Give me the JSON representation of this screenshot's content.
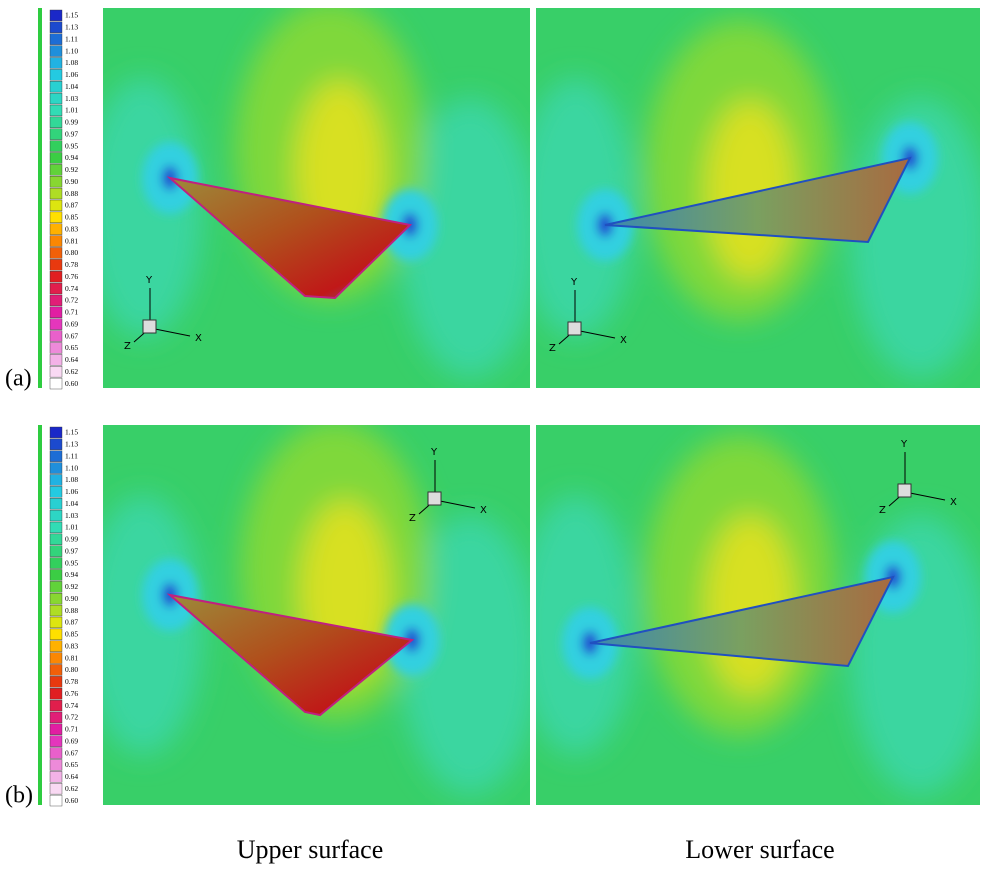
{
  "rows": [
    {
      "label": "(a)",
      "legend": [
        "1.15",
        "1.13",
        "1.11",
        "1.10",
        "1.08",
        "1.06",
        "1.04",
        "1.03",
        "1.01",
        "0.99",
        "0.97",
        "0.95",
        "0.94",
        "0.92",
        "0.90",
        "0.88",
        "0.87",
        "0.85",
        "0.83",
        "0.81",
        "0.80",
        "0.78",
        "0.76",
        "0.74",
        "0.72",
        "0.71",
        "0.69",
        "0.67",
        "0.65",
        "0.64",
        "0.62",
        "0.60"
      ],
      "panels": [
        {
          "axes": [
            "X",
            "Y",
            "Z"
          ]
        },
        {
          "axes": [
            "X",
            "Y",
            "Z"
          ]
        }
      ]
    },
    {
      "label": "(b)",
      "legend": [
        "1.15",
        "1.13",
        "1.11",
        "1.10",
        "1.08",
        "1.06",
        "1.04",
        "1.03",
        "1.01",
        "0.99",
        "0.97",
        "0.95",
        "0.94",
        "0.92",
        "0.90",
        "0.88",
        "0.87",
        "0.85",
        "0.83",
        "0.81",
        "0.80",
        "0.78",
        "0.76",
        "0.74",
        "0.72",
        "0.71",
        "0.69",
        "0.67",
        "0.65",
        "0.64",
        "0.62",
        "0.60"
      ],
      "panels": [
        {
          "axes": [
            "X",
            "Y",
            "Z"
          ]
        },
        {
          "axes": [
            "X",
            "Y",
            "Z"
          ]
        }
      ]
    }
  ],
  "captions": [
    "Upper surface",
    "Lower surface"
  ]
}
